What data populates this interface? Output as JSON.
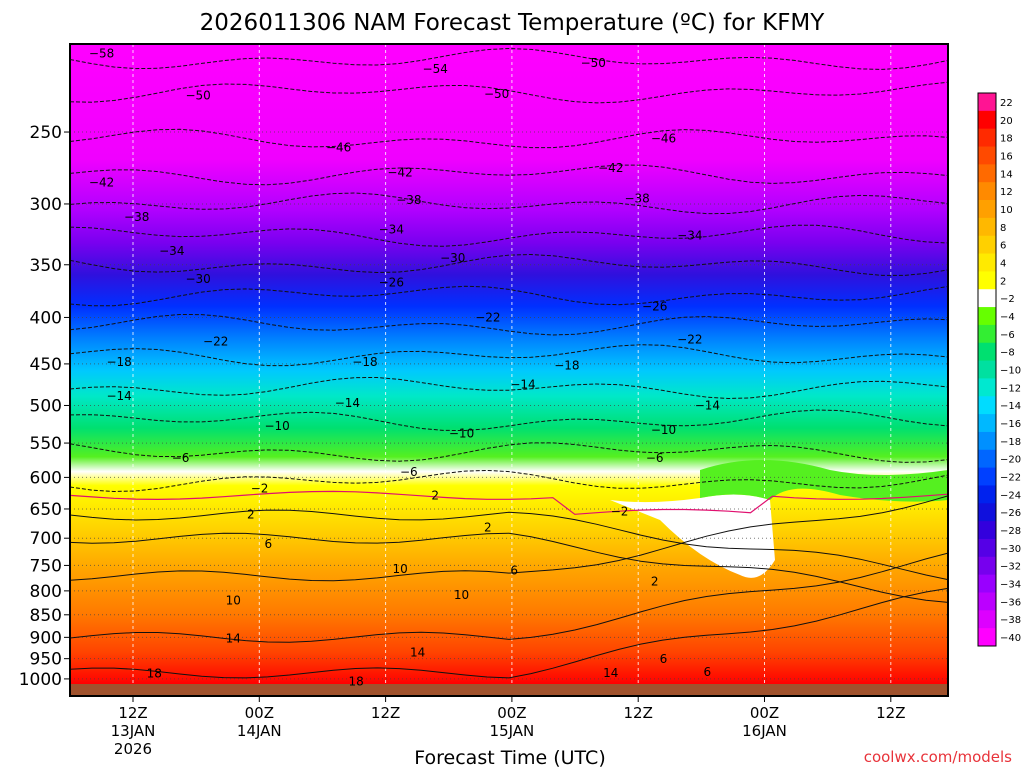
{
  "chart_data": {
    "type": "heatmap",
    "title": "2026011306 NAM Forecast Temperature (ºC) for KFMY",
    "xlabel": "Forecast Time (UTC)",
    "ylabel": "",
    "credit": "coolwx.com/models",
    "y_axis": {
      "scale": "log",
      "inverted": true,
      "range": [
        1020,
        200
      ],
      "ticks": [
        "250",
        "300",
        "350",
        "400",
        "450",
        "500",
        "550",
        "600",
        "650",
        "700",
        "750",
        "800",
        "850",
        "900",
        "950",
        "1000"
      ]
    },
    "x_axis": {
      "ticks": [
        {
          "line1": "12Z",
          "line2": "13JAN",
          "line3": "2026"
        },
        {
          "line1": "00Z",
          "line2": "14JAN",
          "line3": ""
        },
        {
          "line1": "12Z",
          "line2": "",
          "line3": ""
        },
        {
          "line1": "00Z",
          "line2": "15JAN",
          "line3": ""
        },
        {
          "line1": "12Z",
          "line2": "",
          "line3": ""
        },
        {
          "line1": "00Z",
          "line2": "16JAN",
          "line3": ""
        },
        {
          "line1": "12Z",
          "line2": "",
          "line3": ""
        }
      ]
    },
    "colorbar": {
      "labels": [
        "22",
        "20",
        "18",
        "16",
        "14",
        "12",
        "10",
        "8",
        "6",
        "4",
        "2",
        "-2",
        "-4",
        "-6",
        "-8",
        "-10",
        "-12",
        "-14",
        "-16",
        "-18",
        "-20",
        "-22",
        "-24",
        "-26",
        "-28",
        "-30",
        "-32",
        "-34",
        "-36",
        "-38",
        "-40"
      ],
      "colors": [
        "#ff1493",
        "#ff0000",
        "#ff2a00",
        "#ff4a00",
        "#ff6a00",
        "#ff8a00",
        "#ffa000",
        "#ffb800",
        "#ffd000",
        "#ffea00",
        "#ffff00",
        "#ffffff",
        "#66ff00",
        "#33ee33",
        "#00e070",
        "#00e0a0",
        "#00e8d0",
        "#00dcff",
        "#00b8ff",
        "#0090ff",
        "#0066ff",
        "#0040ff",
        "#0022ee",
        "#1010dd",
        "#3300dd",
        "#5500e6",
        "#7700ee",
        "#9900ff",
        "#bb00ff",
        "#dd00ff",
        "#ff00ff"
      ]
    },
    "isotherm_labels": [
      {
        "text": "-58",
        "x": 2,
        "p": 205
      },
      {
        "text": "-54",
        "x": 40,
        "p": 213
      },
      {
        "text": "-50",
        "x": 58,
        "p": 210
      },
      {
        "text": "-50",
        "x": 13,
        "p": 228
      },
      {
        "text": "-50",
        "x": 47,
        "p": 227
      },
      {
        "text": "-46",
        "x": 29,
        "p": 260
      },
      {
        "text": "-46",
        "x": 66,
        "p": 254
      },
      {
        "text": "-42",
        "x": 2,
        "p": 284
      },
      {
        "text": "-42",
        "x": 36,
        "p": 277
      },
      {
        "text": "-42",
        "x": 60,
        "p": 274
      },
      {
        "text": "-38",
        "x": 6,
        "p": 310
      },
      {
        "text": "-38",
        "x": 37,
        "p": 297
      },
      {
        "text": "-38",
        "x": 63,
        "p": 296
      },
      {
        "text": "-34",
        "x": 10,
        "p": 338
      },
      {
        "text": "-34",
        "x": 35,
        "p": 320
      },
      {
        "text": "-34",
        "x": 69,
        "p": 325
      },
      {
        "text": "-30",
        "x": 13,
        "p": 363
      },
      {
        "text": "-30",
        "x": 42,
        "p": 344
      },
      {
        "text": "-26",
        "x": 35,
        "p": 366
      },
      {
        "text": "-26",
        "x": 65,
        "p": 389
      },
      {
        "text": "-22",
        "x": 15,
        "p": 425
      },
      {
        "text": "-22",
        "x": 46,
        "p": 400
      },
      {
        "text": "-22",
        "x": 69,
        "p": 423
      },
      {
        "text": "-18",
        "x": 4,
        "p": 448
      },
      {
        "text": "-18",
        "x": 32,
        "p": 448
      },
      {
        "text": "-18",
        "x": 55,
        "p": 452
      },
      {
        "text": "-14",
        "x": 4,
        "p": 488
      },
      {
        "text": "-14",
        "x": 30,
        "p": 497
      },
      {
        "text": "-14",
        "x": 50,
        "p": 474
      },
      {
        "text": "-14",
        "x": 71,
        "p": 500
      },
      {
        "text": "-10",
        "x": 22,
        "p": 527
      },
      {
        "text": "-10",
        "x": 43,
        "p": 537
      },
      {
        "text": "-10",
        "x": 66,
        "p": 532
      },
      {
        "text": "-6",
        "x": 11,
        "p": 571
      },
      {
        "text": "-6",
        "x": 37,
        "p": 592
      },
      {
        "text": "-6",
        "x": 65,
        "p": 571
      },
      {
        "text": "-2",
        "x": 20,
        "p": 617
      },
      {
        "text": "2",
        "x": 40,
        "p": 628
      },
      {
        "text": "-2",
        "x": 61,
        "p": 654
      },
      {
        "text": "2",
        "x": 19,
        "p": 659
      },
      {
        "text": "2",
        "x": 46,
        "p": 681
      },
      {
        "text": "6",
        "x": 21,
        "p": 710
      },
      {
        "text": "6",
        "x": 49,
        "p": 760
      },
      {
        "text": "2",
        "x": 65,
        "p": 781
      },
      {
        "text": "10",
        "x": 36,
        "p": 757
      },
      {
        "text": "10",
        "x": 17,
        "p": 820
      },
      {
        "text": "10",
        "x": 43,
        "p": 808
      },
      {
        "text": "14",
        "x": 17,
        "p": 903
      },
      {
        "text": "14",
        "x": 38,
        "p": 935
      },
      {
        "text": "14",
        "x": 60,
        "p": 985
      },
      {
        "text": "6",
        "x": 66,
        "p": 951
      },
      {
        "text": "6",
        "x": 71,
        "p": 983
      },
      {
        "text": "18",
        "x": 8,
        "p": 986
      },
      {
        "text": "18",
        "x": 31,
        "p": 1007
      }
    ]
  }
}
